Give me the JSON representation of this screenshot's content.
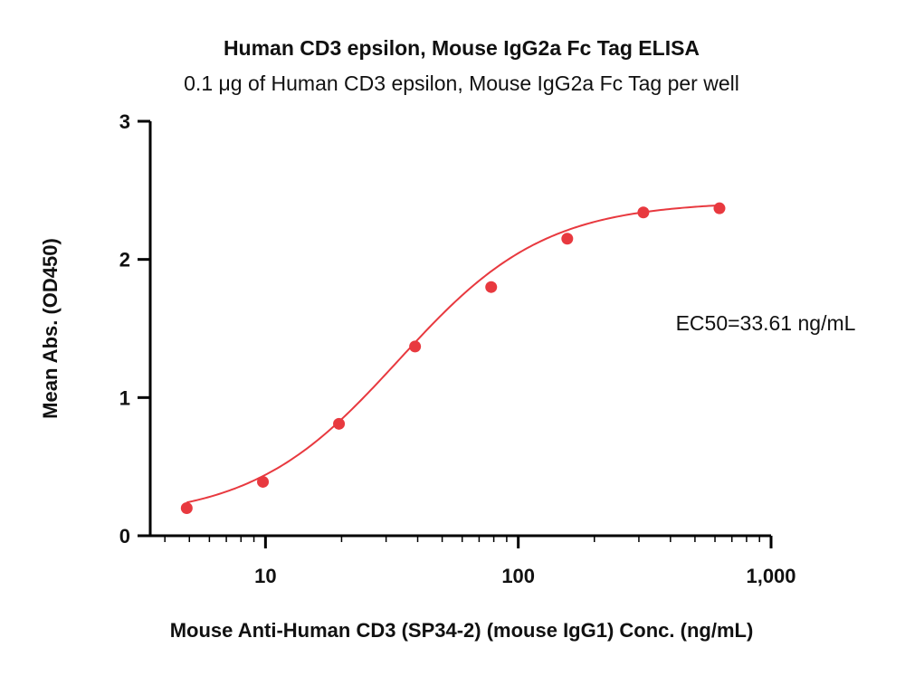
{
  "chart_data": {
    "type": "scatter",
    "title": "Human CD3 epsilon, Mouse IgG2a Fc Tag ELISA",
    "subtitle": "0.1 μg of Human CD3 epsilon, Mouse IgG2a Fc Tag per well",
    "xlabel": "Mouse Anti-Human CD3 (SP34-2) (mouse IgG1) Conc. (ng/mL)",
    "ylabel": "Mean Abs. (OD450)",
    "x_scale": "log",
    "xlim": [
      3.5,
      1000
    ],
    "ylim": [
      0,
      3
    ],
    "x_ticks": [
      10,
      100,
      1000
    ],
    "x_tick_labels": [
      "10",
      "100",
      "1,000"
    ],
    "y_ticks": [
      0,
      1,
      2,
      3
    ],
    "y_tick_labels": [
      "0",
      "1",
      "2",
      "3"
    ],
    "grid": false,
    "legend": "none",
    "annotation": "EC50=33.61 ng/mL",
    "color": "#e8393f",
    "series": [
      {
        "x": [
          4.88,
          9.77,
          19.53,
          39.06,
          78.13,
          156.25,
          312.5,
          625
        ],
        "y": [
          0.2,
          0.39,
          0.81,
          1.37,
          1.8,
          2.15,
          2.34,
          2.37
        ]
      }
    ],
    "fit": {
      "model": "4PL",
      "bottom": 0.12,
      "top": 2.42,
      "ec50": 33.61,
      "hill": 1.5
    }
  }
}
